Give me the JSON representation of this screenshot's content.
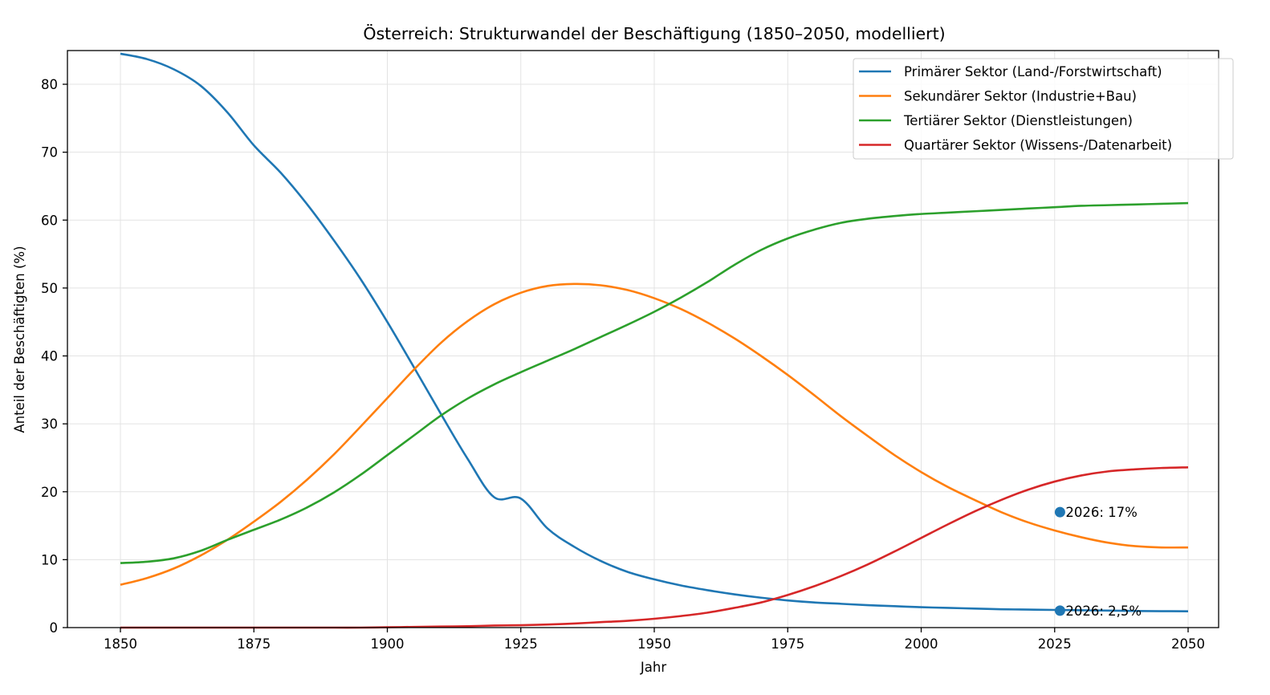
{
  "chart_data": {
    "type": "line",
    "title": "Österreich: Strukturwandel der Beschäftigung (1850–2050, modelliert)",
    "xlabel": "Jahr",
    "ylabel": "Anteil der Beschäftigten (%)",
    "xlim": [
      1840,
      2057
    ],
    "ylim": [
      0,
      85
    ],
    "xticks": [
      1850,
      1875,
      1900,
      1925,
      1950,
      1975,
      2000,
      2025,
      2050
    ],
    "xtick_labels": [
      "1850",
      "1875",
      "1900",
      "1925",
      "1950",
      "1975",
      "2000",
      "2025",
      "2050"
    ],
    "yticks": [
      0,
      10,
      20,
      30,
      40,
      50,
      60,
      70,
      80
    ],
    "ytick_labels": [
      "0",
      "10",
      "20",
      "30",
      "40",
      "50",
      "60",
      "70",
      "80"
    ],
    "grid": true,
    "legend_position": "top-right",
    "x": [
      1850,
      1855,
      1860,
      1865,
      1870,
      1875,
      1880,
      1885,
      1890,
      1895,
      1900,
      1905,
      1910,
      1915,
      1920,
      1925,
      1930,
      1935,
      1940,
      1945,
      1950,
      1955,
      1960,
      1965,
      1970,
      1975,
      1980,
      1985,
      1990,
      1995,
      2000,
      2005,
      2010,
      2015,
      2020,
      2025,
      2030,
      2035,
      2040,
      2045,
      2050
    ],
    "series": [
      {
        "name": "Primärer Sektor (Land-/Forstwirtschaft)",
        "color": "#1f77b4",
        "values": [
          84.5,
          83.7,
          82.2,
          79.8,
          75.9,
          71.0,
          67.0,
          62.3,
          57.0,
          51.3,
          45.0,
          38.3,
          31.5,
          24.9,
          19.2,
          19.0,
          14.6,
          11.9,
          9.8,
          8.2,
          7.1,
          6.2,
          5.5,
          4.9,
          4.4,
          4.0,
          3.7,
          3.5,
          3.3,
          3.15,
          3.0,
          2.9,
          2.8,
          2.7,
          2.65,
          2.6,
          2.55,
          2.5,
          2.45,
          2.42,
          2.4
        ]
      },
      {
        "name": "Sekundärer Sektor (Industrie+Bau)",
        "color": "#ff7f0e",
        "values": [
          6.3,
          7.3,
          8.7,
          10.6,
          12.9,
          15.6,
          18.5,
          21.8,
          25.5,
          29.6,
          33.8,
          38.0,
          41.9,
          45.1,
          47.6,
          49.3,
          50.3,
          50.6,
          50.4,
          49.7,
          48.5,
          46.9,
          44.9,
          42.6,
          40.0,
          37.2,
          34.2,
          31.1,
          28.2,
          25.4,
          22.9,
          20.7,
          18.8,
          17.0,
          15.5,
          14.3,
          13.3,
          12.5,
          12.0,
          11.8,
          11.8
        ]
      },
      {
        "name": "Tertiärer Sektor (Dienstleistungen)",
        "color": "#2ca02c",
        "values": [
          9.5,
          9.7,
          10.2,
          11.3,
          12.9,
          14.4,
          15.9,
          17.7,
          19.9,
          22.5,
          25.4,
          28.3,
          31.2,
          33.7,
          35.8,
          37.6,
          39.3,
          41.0,
          42.8,
          44.6,
          46.5,
          48.6,
          50.9,
          53.4,
          55.6,
          57.3,
          58.6,
          59.6,
          60.2,
          60.6,
          60.9,
          61.1,
          61.3,
          61.5,
          61.7,
          61.9,
          62.1,
          62.2,
          62.3,
          62.4,
          62.5
        ]
      },
      {
        "name": "Quartärer Sektor (Wissens-/Datenarbeit)",
        "color": "#d62728",
        "values": [
          0.0,
          0.0,
          0.0,
          0.0,
          0.0,
          0.0,
          0.0,
          0.0,
          0.0,
          0.0,
          0.05,
          0.1,
          0.15,
          0.2,
          0.3,
          0.35,
          0.45,
          0.6,
          0.8,
          1.0,
          1.3,
          1.7,
          2.2,
          2.9,
          3.7,
          4.8,
          6.1,
          7.6,
          9.3,
          11.2,
          13.2,
          15.2,
          17.1,
          18.8,
          20.3,
          21.5,
          22.4,
          23.0,
          23.3,
          23.5,
          23.6
        ]
      }
    ],
    "annotations": [
      {
        "x": 2026,
        "y": 17,
        "text": "2026: 17%",
        "color": "#1f77b4"
      },
      {
        "x": 2026,
        "y": 2.5,
        "text": "2026: 2,5%",
        "color": "#1f77b4"
      }
    ]
  }
}
